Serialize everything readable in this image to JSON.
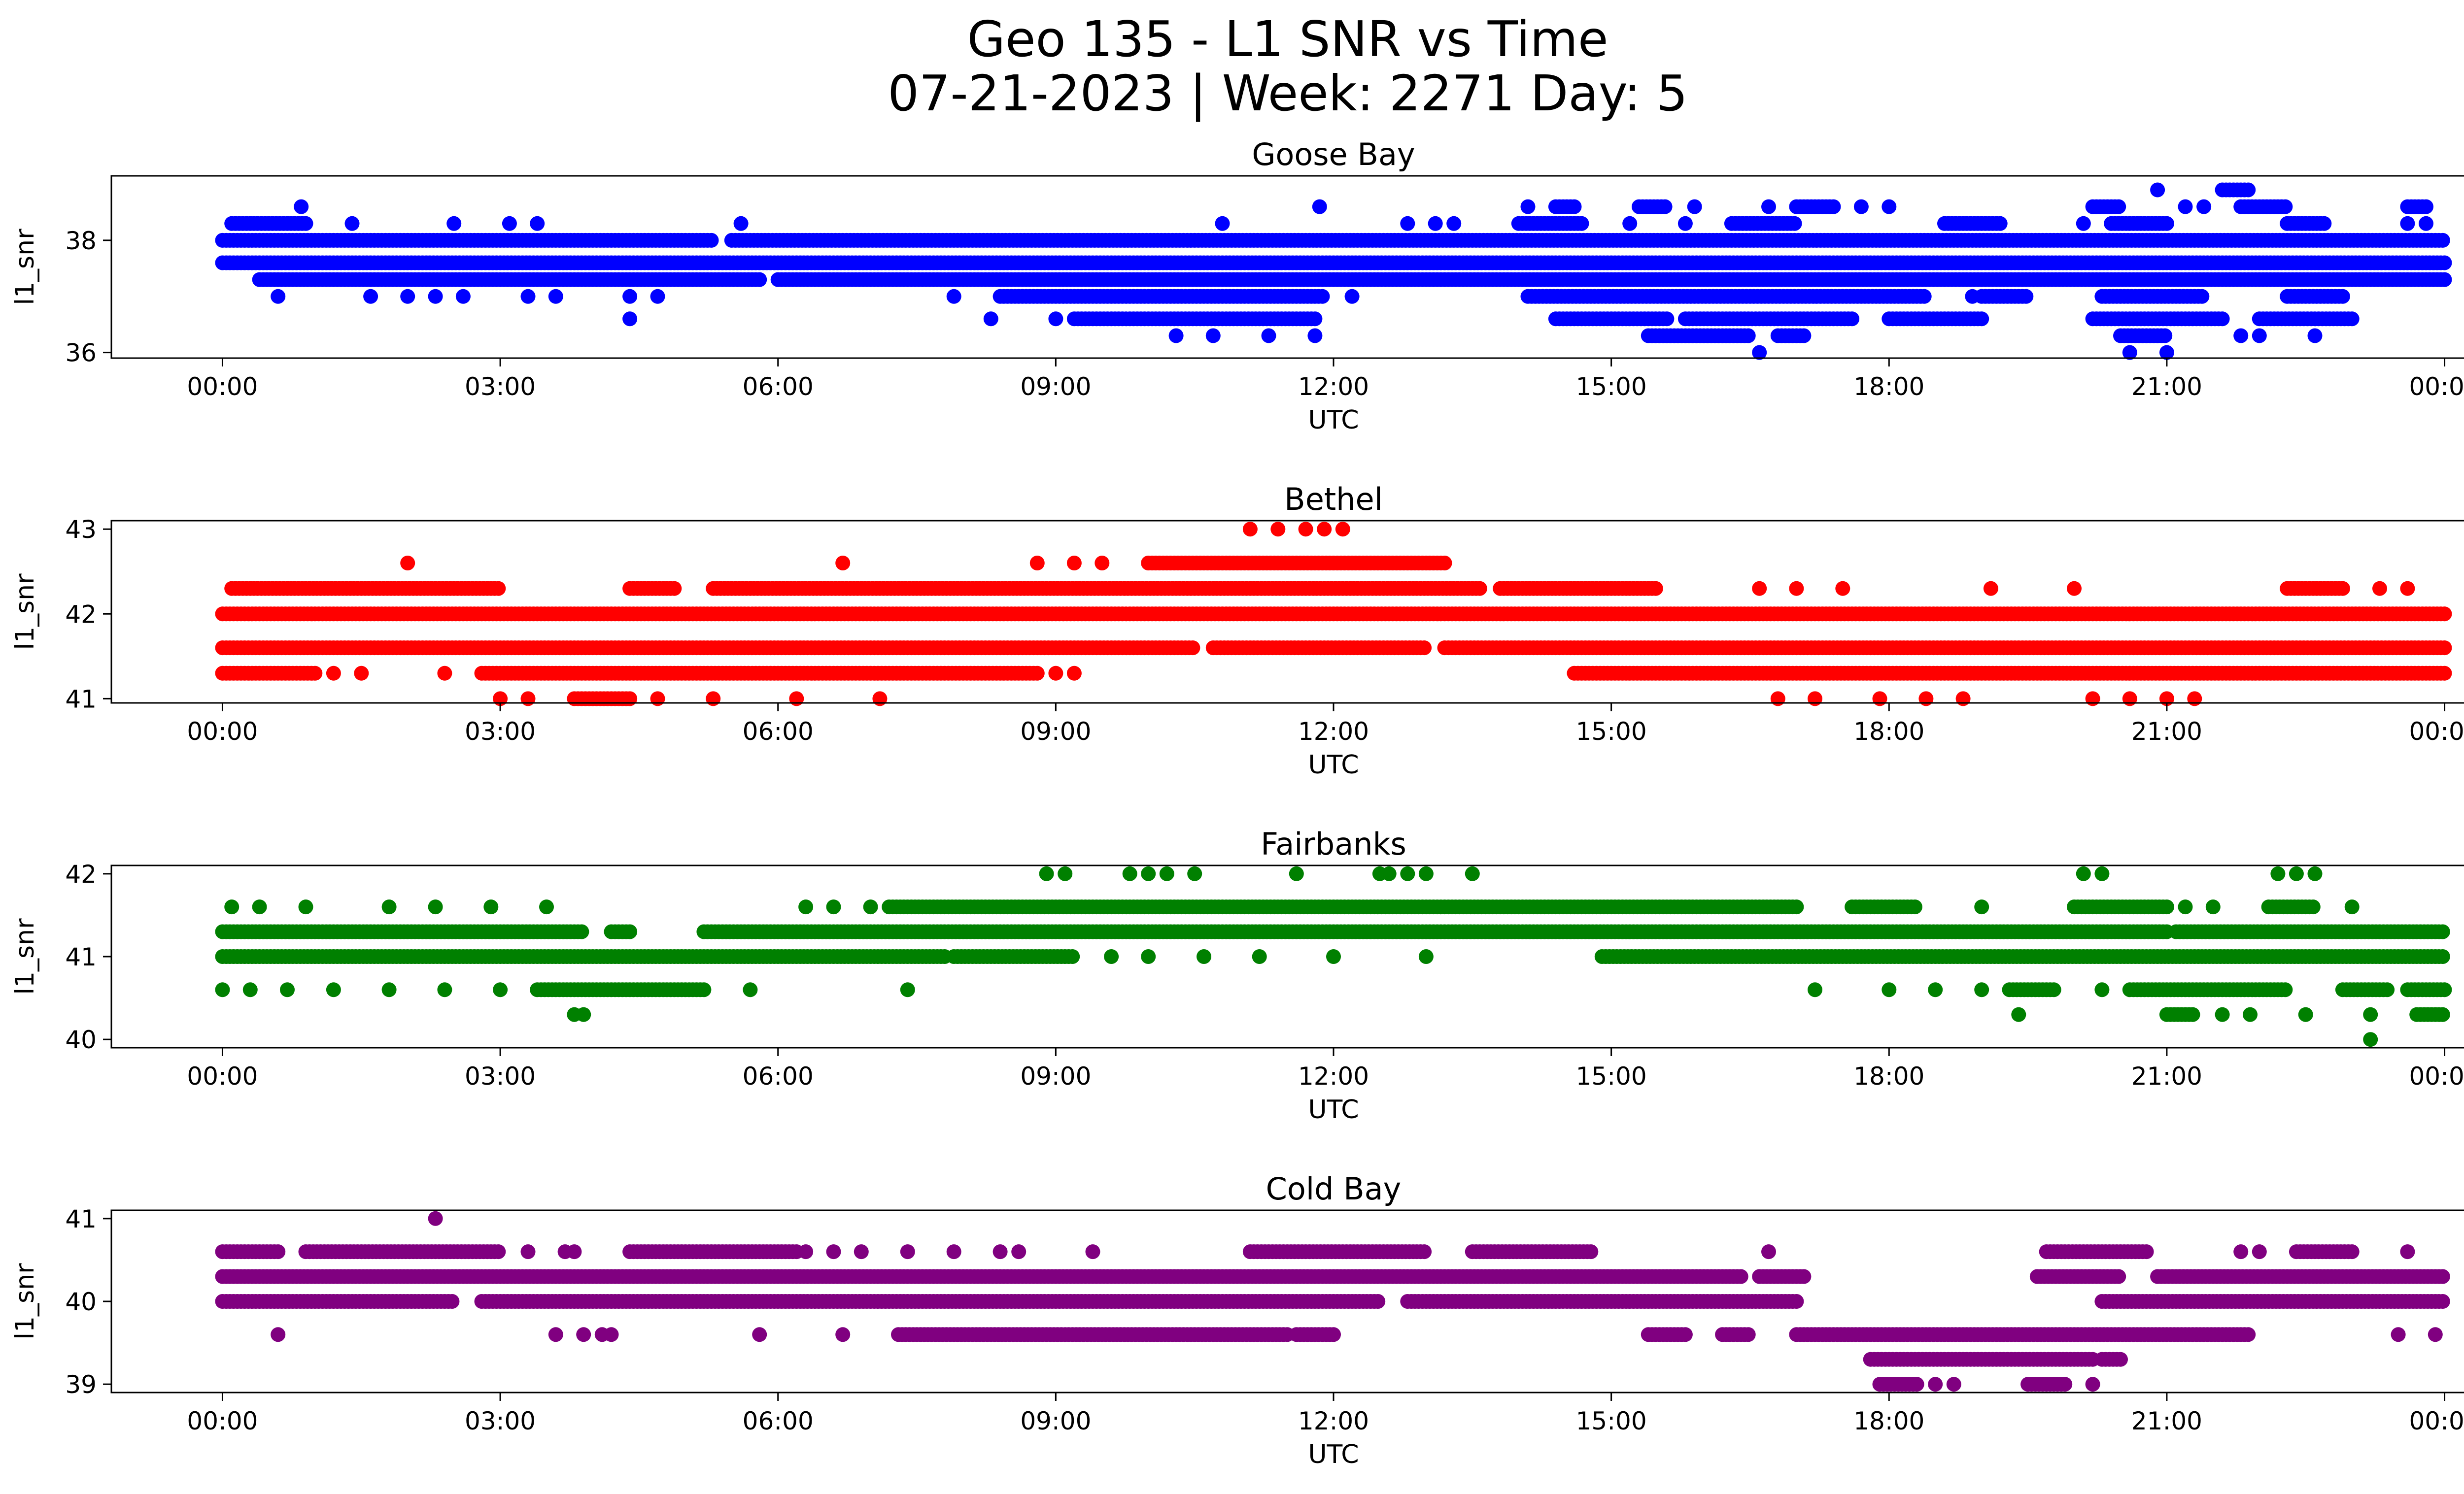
{
  "figure": {
    "title_line1": "Geo 135 - L1 SNR vs Time",
    "title_line2": "07-21-2023 | Week: 2271 Day: 5"
  },
  "chart_data": [
    {
      "type": "scatter",
      "title": "Goose Bay",
      "xlabel": "UTC",
      "ylabel": "l1_snr",
      "color": "#0000ff",
      "x_ticks": [
        "00:00",
        "03:00",
        "06:00",
        "09:00",
        "12:00",
        "15:00",
        "18:00",
        "21:00",
        "00:00"
      ],
      "xlim_hours": [
        -1.2,
        25.2
      ],
      "y_ticks": [
        36,
        38
      ],
      "ylim": [
        35.9,
        39.15
      ],
      "series": [
        {
          "y": 38.0,
          "segments": [
            [
              0.0,
              5.3
            ],
            [
              5.5,
              24.0
            ]
          ]
        },
        {
          "y": 37.6,
          "segments": [
            [
              0.0,
              24.0
            ]
          ]
        },
        {
          "y": 37.3,
          "segments": [
            [
              0.4,
              5.8
            ],
            [
              6.0,
              24.0
            ]
          ]
        },
        {
          "y": 38.3,
          "segments": [
            [
              0.1,
              0.9
            ],
            [
              14.0,
              14.7
            ],
            [
              16.3,
              17.0
            ],
            [
              18.6,
              19.2
            ],
            [
              20.4,
              21.0
            ],
            [
              22.3,
              22.7
            ]
          ],
          "sparse": [
            [
              1.4,
              2.5,
              3.1,
              3.4,
              5.6,
              10.8,
              12.8,
              13.1,
              13.3,
              15.2,
              15.8,
              20.1,
              23.6,
              23.8
            ],
            []
          ]
        },
        {
          "y": 37.0,
          "segments": [
            [
              8.4,
              11.9
            ],
            [
              14.1,
              18.4
            ],
            [
              19.0,
              19.5
            ],
            [
              20.3,
              21.4
            ],
            [
              22.3,
              22.9
            ]
          ],
          "sparse": [
            [
              0.6,
              1.6,
              2.0,
              2.3,
              2.6,
              3.3,
              3.6,
              4.4,
              4.7,
              7.9,
              12.2,
              18.9
            ]
          ]
        },
        {
          "y": 36.6,
          "segments": [
            [
              9.2,
              11.8
            ],
            [
              14.4,
              15.6
            ],
            [
              15.8,
              17.6
            ],
            [
              18.0,
              19.0
            ],
            [
              20.2,
              21.6
            ],
            [
              22.0,
              23.0
            ]
          ],
          "sparse": [
            [
              4.4,
              8.3,
              9.0
            ]
          ]
        },
        {
          "y": 36.3,
          "segments": [
            [
              15.4,
              16.5
            ],
            [
              16.8,
              17.1
            ],
            [
              20.5,
              21.0
            ]
          ],
          "sparse": [
            [
              10.3,
              10.7,
              11.3,
              11.8,
              21.8,
              22.0,
              22.6
            ]
          ]
        },
        {
          "y": 38.6,
          "segments": [
            [
              14.4,
              14.6
            ],
            [
              15.3,
              15.6
            ],
            [
              17.0,
              17.4
            ],
            [
              20.2,
              20.5
            ],
            [
              21.8,
              22.3
            ],
            [
              23.6,
              23.8
            ]
          ],
          "sparse": [
            [
              0.85,
              11.85,
              14.1,
              15.9,
              16.7,
              17.7,
              18.0,
              21.2,
              21.4
            ]
          ]
        },
        {
          "y": 38.9,
          "segments": [
            [
              21.6,
              21.9
            ]
          ],
          "sparse": [
            [
              20.9
            ]
          ]
        },
        {
          "y": 36.0,
          "segments": [],
          "sparse": [
            [
              16.6,
              20.6,
              21.0
            ]
          ]
        }
      ]
    },
    {
      "type": "scatter",
      "title": "Bethel",
      "xlabel": "UTC",
      "ylabel": "l1_snr",
      "color": "#ff0000",
      "x_ticks": [
        "00:00",
        "03:00",
        "06:00",
        "09:00",
        "12:00",
        "15:00",
        "18:00",
        "21:00",
        "00:00"
      ],
      "xlim_hours": [
        -1.2,
        25.2
      ],
      "y_ticks": [
        41,
        42,
        43
      ],
      "ylim": [
        40.95,
        43.1
      ],
      "series": [
        {
          "y": 42.0,
          "segments": [
            [
              0.0,
              24.0
            ]
          ]
        },
        {
          "y": 41.6,
          "segments": [
            [
              0.0,
              10.5
            ],
            [
              10.7,
              13.0
            ],
            [
              13.2,
              24.0
            ]
          ]
        },
        {
          "y": 41.3,
          "segments": [
            [
              0.0,
              1.0
            ],
            [
              2.8,
              8.8
            ],
            [
              14.6,
              24.0
            ]
          ],
          "sparse": [
            [
              1.2,
              1.5,
              2.4,
              9.0,
              9.2
            ]
          ]
        },
        {
          "y": 42.3,
          "segments": [
            [
              0.1,
              3.0
            ],
            [
              4.4,
              4.9
            ],
            [
              5.3,
              13.6
            ],
            [
              13.8,
              15.5
            ],
            [
              22.3,
              22.9
            ]
          ],
          "sparse": [
            [
              16.6,
              17.0,
              17.5,
              19.1,
              20.0,
              23.3,
              23.6
            ]
          ]
        },
        {
          "y": 42.6,
          "segments": [
            [
              10.0,
              13.2
            ]
          ],
          "sparse": [
            [
              2.0,
              6.7,
              8.8,
              9.2,
              9.5
            ]
          ]
        },
        {
          "y": 43.0,
          "segments": [],
          "sparse": [
            [
              11.1,
              11.4,
              11.7,
              11.9,
              12.1
            ]
          ]
        },
        {
          "y": 41.0,
          "segments": [
            [
              3.8,
              4.4
            ]
          ],
          "sparse": [
            [
              3.0,
              3.3,
              4.7,
              5.3,
              6.2,
              7.1,
              16.8,
              17.2,
              17.9,
              18.4,
              18.8,
              20.2,
              20.6,
              21.0,
              21.3
            ]
          ]
        }
      ]
    },
    {
      "type": "scatter",
      "title": "Fairbanks",
      "xlabel": "UTC",
      "ylabel": "l1_snr",
      "color": "#008000",
      "x_ticks": [
        "00:00",
        "03:00",
        "06:00",
        "09:00",
        "12:00",
        "15:00",
        "18:00",
        "21:00",
        "00:00"
      ],
      "xlim_hours": [
        -1.2,
        25.2
      ],
      "y_ticks": [
        40,
        41,
        42
      ],
      "ylim": [
        39.9,
        42.1
      ],
      "series": [
        {
          "y": 41.3,
          "segments": [
            [
              0.0,
              3.9
            ],
            [
              4.2,
              4.4
            ],
            [
              5.2,
              21.0
            ],
            [
              21.1,
              24.0
            ]
          ]
        },
        {
          "y": 41.0,
          "segments": [
            [
              0.0,
              7.8
            ],
            [
              7.9,
              9.2
            ],
            [
              14.9,
              24.0
            ]
          ],
          "sparse": [
            [
              9.6,
              10.0,
              10.6,
              11.2,
              12.0,
              13.0
            ]
          ]
        },
        {
          "y": 41.6,
          "segments": [
            [
              7.2,
              17.0
            ],
            [
              17.6,
              18.3
            ],
            [
              20.0,
              21.0
            ],
            [
              22.1,
              22.6
            ]
          ],
          "sparse": [
            [
              0.1,
              0.4,
              0.9,
              1.8,
              2.3,
              2.9,
              3.5,
              6.3,
              6.6,
              7.0,
              19.0,
              21.2,
              21.5,
              23.0
            ]
          ]
        },
        {
          "y": 40.6,
          "segments": [
            [
              3.4,
              5.2
            ],
            [
              19.3,
              19.8
            ],
            [
              20.6,
              22.3
            ],
            [
              22.9,
              23.4
            ],
            [
              23.6,
              24.0
            ]
          ],
          "sparse": [
            [
              0.0,
              0.3,
              0.7,
              1.2,
              1.8,
              2.4,
              3.0,
              5.7,
              7.4,
              17.2,
              18.0,
              18.5,
              19.0,
              20.3
            ]
          ]
        },
        {
          "y": 40.3,
          "segments": [
            [
              21.0,
              21.3
            ],
            [
              23.7,
              24.0
            ]
          ],
          "sparse": [
            [
              3.8,
              3.9,
              19.4,
              21.6,
              21.9,
              22.5,
              23.2
            ]
          ]
        },
        {
          "y": 42.0,
          "segments": [],
          "sparse": [
            [
              8.9,
              9.1,
              9.8,
              10.0,
              10.2,
              10.5,
              11.6,
              12.5,
              12.6,
              12.8,
              13.0,
              13.5,
              20.1,
              20.3,
              22.2,
              22.4,
              22.6
            ]
          ]
        },
        {
          "y": 40.0,
          "segments": [],
          "sparse": [
            [
              23.2
            ]
          ]
        }
      ]
    },
    {
      "type": "scatter",
      "title": "Cold Bay",
      "xlabel": "UTC",
      "ylabel": "l1_snr",
      "color": "#800080",
      "x_ticks": [
        "00:00",
        "03:00",
        "06:00",
        "09:00",
        "12:00",
        "15:00",
        "18:00",
        "21:00",
        "00:00"
      ],
      "xlim_hours": [
        -1.2,
        25.2
      ],
      "y_ticks": [
        39,
        40,
        41
      ],
      "ylim": [
        38.9,
        41.1
      ],
      "series": [
        {
          "y": 40.3,
          "segments": [
            [
              0.0,
              16.4
            ],
            [
              16.6,
              17.1
            ],
            [
              19.6,
              20.5
            ],
            [
              20.9,
              24.0
            ]
          ]
        },
        {
          "y": 40.0,
          "segments": [
            [
              0.0,
              2.5
            ],
            [
              2.8,
              12.5
            ],
            [
              12.8,
              17.0
            ],
            [
              20.3,
              24.0
            ]
          ]
        },
        {
          "y": 40.6,
          "segments": [
            [
              0.0,
              0.6
            ],
            [
              0.9,
              3.0
            ],
            [
              4.4,
              6.2
            ],
            [
              11.1,
              13.0
            ],
            [
              13.5,
              14.8
            ],
            [
              22.4,
              23.0
            ]
          ],
          "sparse": [
            [
              3.3,
              3.7,
              3.8,
              6.3,
              6.6,
              6.9,
              7.4,
              7.9,
              8.4,
              8.6,
              9.4,
              16.7,
              21.8,
              23.6
            ]
          ]
        },
        {
          "y": 39.6,
          "segments": [
            [
              7.3,
              11.5
            ],
            [
              11.6,
              12.0
            ],
            [
              15.4,
              15.8
            ],
            [
              16.2,
              16.5
            ],
            [
              17.0,
              21.9
            ]
          ],
          "sparse": [
            [
              0.6,
              3.6,
              3.9,
              4.1,
              4.2,
              5.8,
              6.7,
              23.5,
              23.9
            ]
          ]
        },
        {
          "y": 39.3,
          "segments": [
            [
              17.8,
              20.2
            ],
            [
              20.3,
              20.5
            ]
          ]
        },
        {
          "y": 39.0,
          "segments": [
            [
              17.9,
              18.3
            ],
            [
              19.5,
              19.9
            ]
          ],
          "sparse": [
            [
              18.5,
              18.7,
              20.2
            ]
          ]
        },
        {
          "y": 41.0,
          "segments": [],
          "sparse": [
            [
              2.3
            ]
          ]
        },
        {
          "y": 40.6,
          "segments": [
            [
              19.7,
              20.8
            ]
          ],
          "sparse": [
            [
              22.0
            ]
          ]
        }
      ]
    }
  ]
}
